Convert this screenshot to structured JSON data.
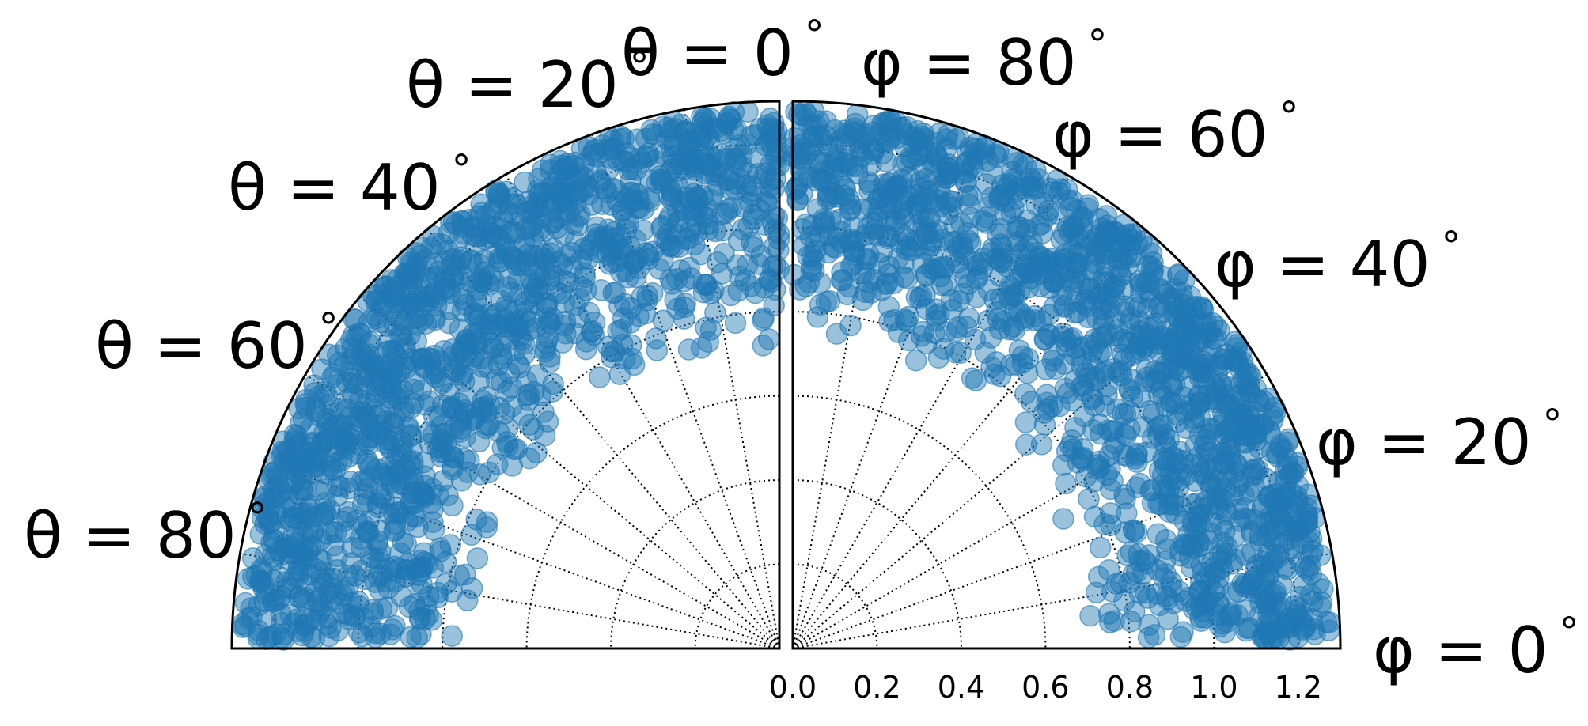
{
  "chart_data": [
    {
      "type": "scatter",
      "panel": "left",
      "coordinate_system": "polar",
      "angular_variable": "θ",
      "angular_range_deg": [
        0,
        90
      ],
      "radial_range": [
        0,
        1.3
      ],
      "angle_tick_values_deg": [
        0,
        20,
        40,
        60,
        80
      ],
      "angle_tick_labels": [
        {
          "text": "θ = 0",
          "deg": "°"
        },
        {
          "text": "θ = 20",
          "deg": "°"
        },
        {
          "text": "θ = 40",
          "deg": "°"
        },
        {
          "text": "θ = 60",
          "deg": "°"
        },
        {
          "text": "θ = 80",
          "deg": "°"
        }
      ],
      "radial_gridlines": [
        0.2,
        0.4,
        0.6,
        0.8,
        1.0,
        1.2
      ],
      "angular_gridlines_deg": [
        10,
        20,
        30,
        40,
        50,
        60,
        70,
        80
      ],
      "points_description_value_range": {
        "r_min": 0.7,
        "r_max": 1.28
      },
      "marker_color": "#1f77b4",
      "marker_alpha": 0.45,
      "point_count": 1500,
      "legend": "none"
    },
    {
      "type": "scatter",
      "panel": "right",
      "coordinate_system": "polar",
      "angular_variable": "φ",
      "angular_range_deg": [
        0,
        90
      ],
      "radial_range": [
        0,
        1.3
      ],
      "angle_tick_values_deg": [
        0,
        20,
        40,
        60,
        80
      ],
      "angle_tick_labels": [
        {
          "text": "φ = 0",
          "deg": "°"
        },
        {
          "text": "φ = 20",
          "deg": "°"
        },
        {
          "text": "φ = 40",
          "deg": "°"
        },
        {
          "text": "φ = 60",
          "deg": "°"
        },
        {
          "text": "φ = 80",
          "deg": "°"
        }
      ],
      "radial_ticks": [
        "0.0",
        "0.2",
        "0.4",
        "0.6",
        "0.8",
        "1.0",
        "1.2"
      ],
      "radial_tick_values": [
        0.0,
        0.2,
        0.4,
        0.6,
        0.8,
        1.0,
        1.2
      ],
      "radial_gridlines": [
        0.2,
        0.4,
        0.6,
        0.8,
        1.0,
        1.2
      ],
      "angular_gridlines_deg": [
        10,
        20,
        30,
        40,
        50,
        60,
        70,
        80
      ],
      "points_description_value_range": {
        "r_min": 0.7,
        "r_max": 1.28
      },
      "marker_color": "#1f77b4",
      "marker_alpha": 0.45,
      "point_count": 1500,
      "legend": "none"
    }
  ]
}
